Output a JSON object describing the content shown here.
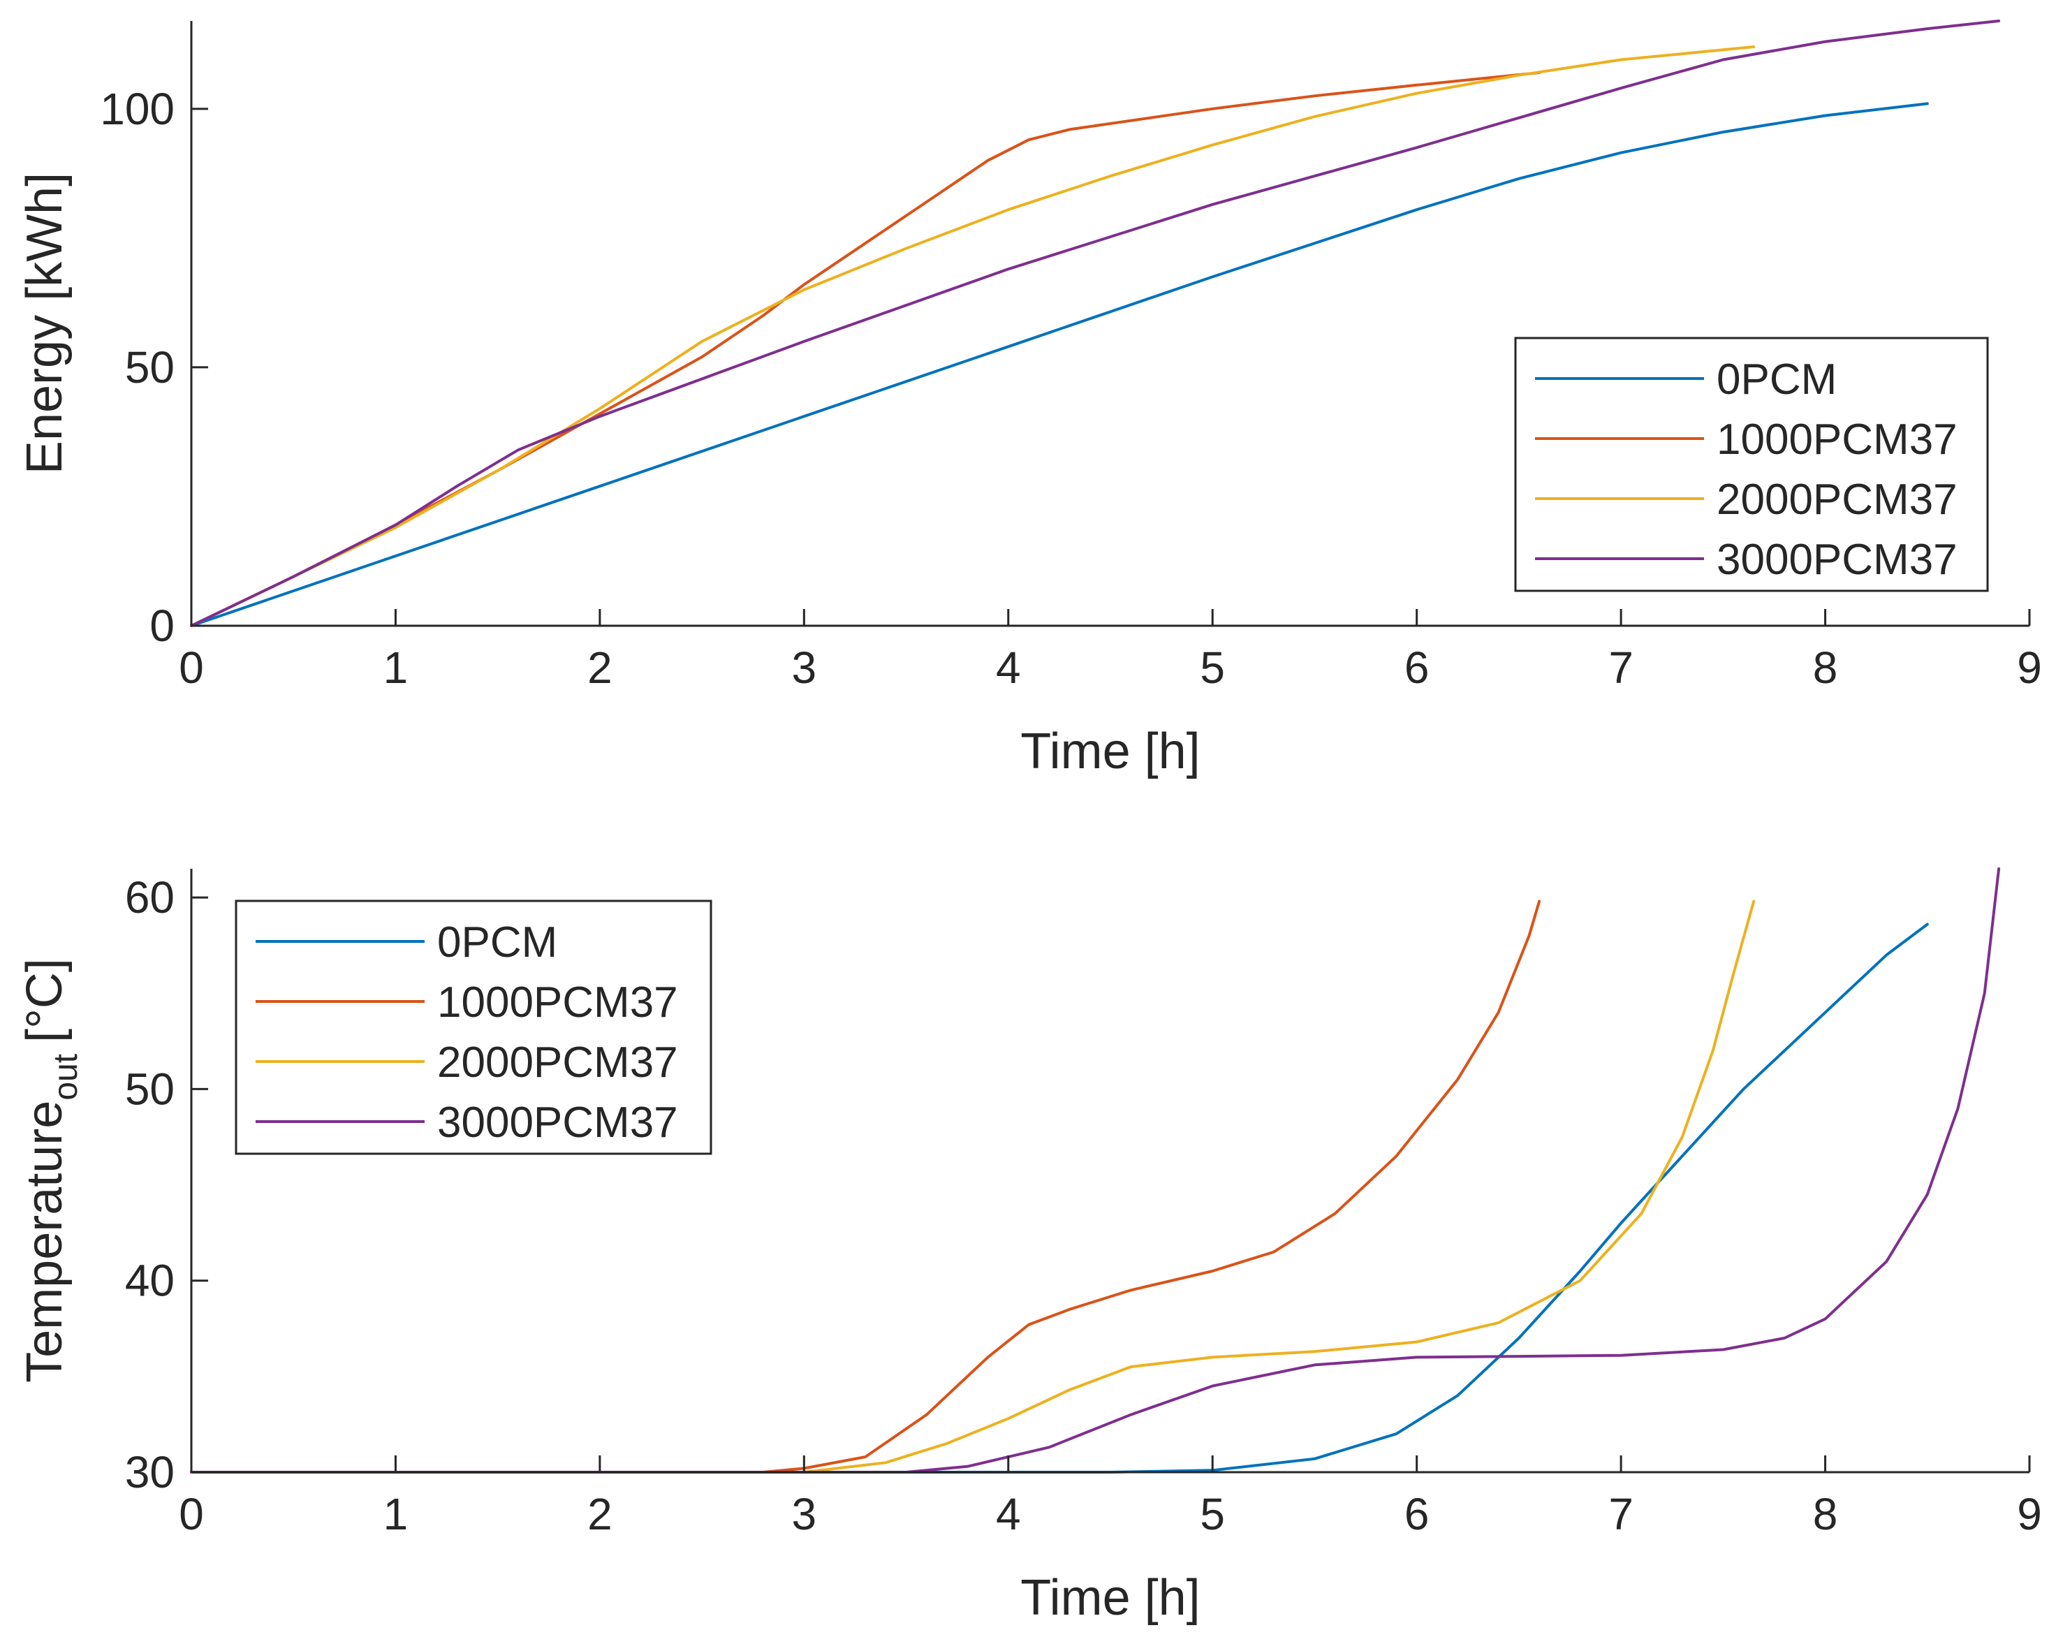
{
  "chart_data": [
    {
      "type": "line",
      "title": "",
      "xlabel": "Time [h]",
      "ylabel": "Energy [kWh]",
      "xlim": [
        0,
        9
      ],
      "ylim": [
        0,
        117
      ],
      "xticks": [
        0,
        1,
        2,
        3,
        4,
        5,
        6,
        7,
        8,
        9
      ],
      "yticks": [
        0,
        50,
        100
      ],
      "legend_position": "right",
      "grid": false,
      "series": [
        {
          "name": "0PCM",
          "color": "#0072BD",
          "points": [
            [
              0,
              0
            ],
            [
              1,
              13.5
            ],
            [
              2,
              27
            ],
            [
              3,
              40.5
            ],
            [
              4,
              54
            ],
            [
              5,
              67.5
            ],
            [
              6,
              80.5
            ],
            [
              6.5,
              86.5
            ],
            [
              7,
              91.5
            ],
            [
              7.5,
              95.5
            ],
            [
              8,
              98.7
            ],
            [
              8.5,
              101
            ]
          ]
        },
        {
          "name": "1000PCM37",
          "color": "#D95319",
          "points": [
            [
              0,
              0
            ],
            [
              0.5,
              9.5
            ],
            [
              1,
              19.5
            ],
            [
              1.5,
              30
            ],
            [
              2,
              41
            ],
            [
              2.5,
              52
            ],
            [
              2.8,
              60
            ],
            [
              3,
              66
            ],
            [
              3.3,
              74
            ],
            [
              3.6,
              82
            ],
            [
              3.9,
              90
            ],
            [
              4.1,
              94
            ],
            [
              4.3,
              96
            ],
            [
              5,
              100
            ],
            [
              5.5,
              102.5
            ],
            [
              6,
              104.6
            ],
            [
              6.6,
              107
            ]
          ]
        },
        {
          "name": "2000PCM37",
          "color": "#EDB120",
          "points": [
            [
              0,
              0
            ],
            [
              0.5,
              9.5
            ],
            [
              1,
              19
            ],
            [
              1.5,
              30
            ],
            [
              2,
              42
            ],
            [
              2.5,
              55
            ],
            [
              3,
              65
            ],
            [
              3.5,
              73
            ],
            [
              4,
              80.5
            ],
            [
              4.5,
              87
            ],
            [
              5,
              93
            ],
            [
              5.5,
              98.5
            ],
            [
              6,
              103
            ],
            [
              6.5,
              106.5
            ],
            [
              7,
              109.5
            ],
            [
              7.65,
              112
            ]
          ]
        },
        {
          "name": "3000PCM37",
          "color": "#7E2F8E",
          "points": [
            [
              0,
              0
            ],
            [
              0.5,
              9.5
            ],
            [
              1,
              19.5
            ],
            [
              1.3,
              27
            ],
            [
              1.6,
              34
            ],
            [
              2,
              40.5
            ],
            [
              3,
              55
            ],
            [
              4,
              69
            ],
            [
              5,
              81.5
            ],
            [
              6,
              92.5
            ],
            [
              7,
              104
            ],
            [
              7.5,
              109.5
            ],
            [
              8,
              113
            ],
            [
              8.5,
              115.5
            ],
            [
              8.85,
              117
            ]
          ]
        }
      ]
    },
    {
      "type": "line",
      "title": "",
      "xlabel": "Time [h]",
      "ylabel": "Temperature",
      "ylabel_sub": "out",
      "ylabel_suffix": "[°C]",
      "xlim": [
        0,
        9
      ],
      "ylim": [
        30,
        61.5
      ],
      "xticks": [
        0,
        1,
        2,
        3,
        4,
        5,
        6,
        7,
        8,
        9
      ],
      "yticks": [
        30,
        40,
        50,
        60
      ],
      "legend_position": "top-left",
      "grid": false,
      "series": [
        {
          "name": "0PCM",
          "color": "#0072BD",
          "points": [
            [
              0,
              30
            ],
            [
              4,
              30
            ],
            [
              4.5,
              30
            ],
            [
              5,
              30.1
            ],
            [
              5.5,
              30.7
            ],
            [
              5.9,
              32
            ],
            [
              6.2,
              34
            ],
            [
              6.5,
              37
            ],
            [
              6.8,
              40.5
            ],
            [
              7,
              43
            ],
            [
              7.3,
              46.5
            ],
            [
              7.6,
              50
            ],
            [
              8,
              54
            ],
            [
              8.3,
              57
            ],
            [
              8.5,
              58.6
            ]
          ]
        },
        {
          "name": "1000PCM37",
          "color": "#D95319",
          "points": [
            [
              0,
              30
            ],
            [
              2.8,
              30
            ],
            [
              3,
              30.2
            ],
            [
              3.3,
              30.8
            ],
            [
              3.6,
              33
            ],
            [
              3.9,
              36
            ],
            [
              4.1,
              37.7
            ],
            [
              4.3,
              38.5
            ],
            [
              4.6,
              39.5
            ],
            [
              5,
              40.5
            ],
            [
              5.3,
              41.5
            ],
            [
              5.6,
              43.5
            ],
            [
              5.9,
              46.5
            ],
            [
              6.2,
              50.5
            ],
            [
              6.4,
              54
            ],
            [
              6.55,
              58
            ],
            [
              6.6,
              59.8
            ]
          ]
        },
        {
          "name": "2000PCM37",
          "color": "#EDB120",
          "points": [
            [
              0,
              30
            ],
            [
              3,
              30
            ],
            [
              3.4,
              30.5
            ],
            [
              3.7,
              31.5
            ],
            [
              4,
              32.8
            ],
            [
              4.3,
              34.3
            ],
            [
              4.6,
              35.5
            ],
            [
              5,
              36
            ],
            [
              5.5,
              36.3
            ],
            [
              6,
              36.8
            ],
            [
              6.4,
              37.8
            ],
            [
              6.8,
              40
            ],
            [
              7.1,
              43.5
            ],
            [
              7.3,
              47.5
            ],
            [
              7.45,
              52
            ],
            [
              7.55,
              56
            ],
            [
              7.65,
              59.8
            ]
          ]
        },
        {
          "name": "3000PCM37",
          "color": "#7E2F8E",
          "points": [
            [
              0,
              30
            ],
            [
              3.5,
              30
            ],
            [
              3.8,
              30.3
            ],
            [
              4.2,
              31.3
            ],
            [
              4.6,
              33
            ],
            [
              5,
              34.5
            ],
            [
              5.5,
              35.6
            ],
            [
              6,
              36
            ],
            [
              6.5,
              36.05
            ],
            [
              7,
              36.1
            ],
            [
              7.5,
              36.4
            ],
            [
              7.8,
              37
            ],
            [
              8,
              38
            ],
            [
              8.3,
              41
            ],
            [
              8.5,
              44.5
            ],
            [
              8.65,
              49
            ],
            [
              8.78,
              55
            ],
            [
              8.85,
              61.5
            ]
          ]
        }
      ]
    }
  ]
}
